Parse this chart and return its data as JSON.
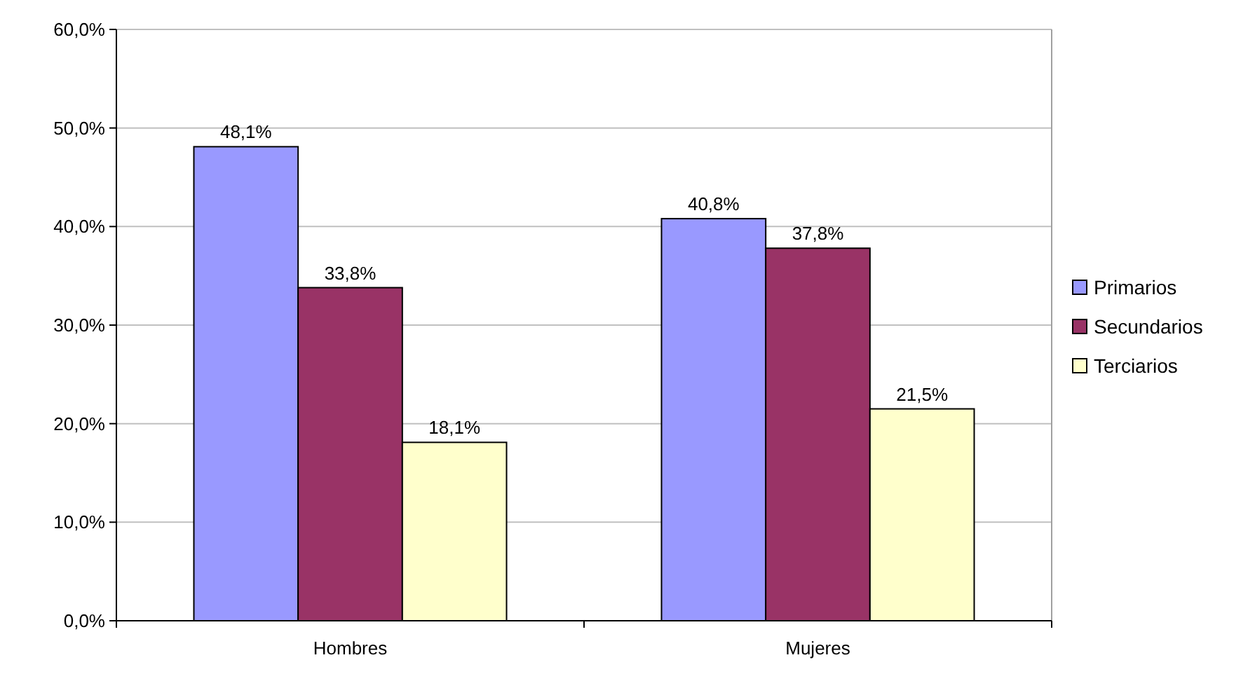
{
  "chart_data": {
    "type": "bar",
    "categories": [
      "Hombres",
      "Mujeres"
    ],
    "series": [
      {
        "name": "Primarios",
        "color": "#9999ff",
        "values": [
          48.1,
          40.8
        ],
        "value_labels": [
          "48,1%",
          "40,8%"
        ]
      },
      {
        "name": "Secundarios",
        "color": "#993366",
        "values": [
          33.8,
          37.8
        ],
        "value_labels": [
          "33,8%",
          "37,8%"
        ]
      },
      {
        "name": "Terciarios",
        "color": "#ffffcc",
        "values": [
          18.1,
          21.5
        ],
        "value_labels": [
          "18,1%",
          "21,5%"
        ]
      }
    ],
    "ylim": [
      0,
      60
    ],
    "yticks": [
      {
        "value": 0,
        "label": "0,0%"
      },
      {
        "value": 10,
        "label": "10,0%"
      },
      {
        "value": 20,
        "label": "20,0%"
      },
      {
        "value": 30,
        "label": "30,0%"
      },
      {
        "value": 40,
        "label": "40,0%"
      },
      {
        "value": 50,
        "label": "50,0%"
      },
      {
        "value": 60,
        "label": "60,0%"
      }
    ],
    "grid": "y",
    "legend": "right"
  }
}
